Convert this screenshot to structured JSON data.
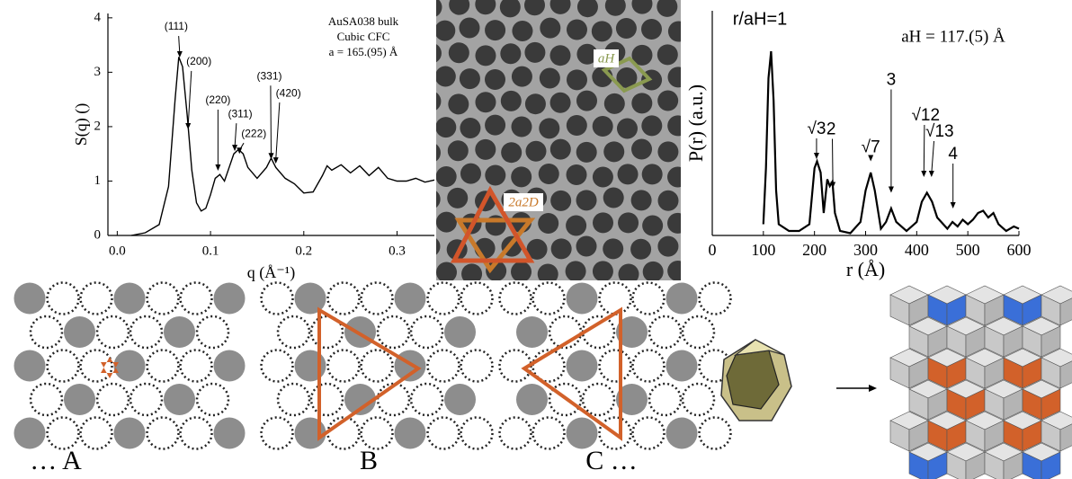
{
  "chart_data": [
    {
      "type": "line",
      "xlabel": "q (Å⁻¹)",
      "ylabel": "S(q) ()",
      "text_box": [
        "AuSA038 bulk",
        "Cubic CFC",
        "a = 165.(95) Å"
      ],
      "x": [
        0.015,
        0.03,
        0.045,
        0.055,
        0.062,
        0.066,
        0.07,
        0.075,
        0.08,
        0.085,
        0.09,
        0.095,
        0.1,
        0.105,
        0.11,
        0.115,
        0.12,
        0.125,
        0.13,
        0.135,
        0.14,
        0.15,
        0.16,
        0.165,
        0.17,
        0.18,
        0.19,
        0.2,
        0.21,
        0.22,
        0.225,
        0.23,
        0.24,
        0.25,
        0.26,
        0.27,
        0.28,
        0.29,
        0.3,
        0.31,
        0.32,
        0.33,
        0.34
      ],
      "values": [
        0,
        0.05,
        0.2,
        0.9,
        2.5,
        3.28,
        3.1,
        2.2,
        1.2,
        0.6,
        0.45,
        0.5,
        0.75,
        1.05,
        1.12,
        1.0,
        1.25,
        1.5,
        1.58,
        1.5,
        1.25,
        1.05,
        1.25,
        1.42,
        1.25,
        1.05,
        0.95,
        0.78,
        0.8,
        1.1,
        1.28,
        1.2,
        1.3,
        1.15,
        1.28,
        1.1,
        1.25,
        1.05,
        1.0,
        1.0,
        1.05,
        0.98,
        1.02
      ],
      "color": "#000000",
      "xlim": [
        -0.01,
        0.34
      ],
      "ylim": [
        0,
        4.08
      ],
      "xticks": [
        {
          "value": 0,
          "label": "0.0"
        },
        0.1,
        0.2,
        0.3
      ],
      "yticks": [
        0,
        1,
        2,
        3,
        4
      ],
      "annotations": [
        {
          "text": "(111)",
          "x": 0.067,
          "y": 3.27
        },
        {
          "text": "(200)",
          "x": 0.076,
          "y": 1.95
        },
        {
          "text": "(220)",
          "x": 0.108,
          "y": 1.19
        },
        {
          "text": "(311)",
          "x": 0.126,
          "y": 1.55
        },
        {
          "text": "(222)",
          "x": 0.131,
          "y": 1.5
        },
        {
          "text": "(331)",
          "x": 0.165,
          "y": 1.4
        },
        {
          "text": "(420)",
          "x": 0.17,
          "y": 1.32
        }
      ]
    },
    {
      "type": "line",
      "xlabel": "r  (Å)",
      "ylabel": "P(r)  (a.u.)",
      "text_box": [
        "aH = 117.(5) Å"
      ],
      "peak_label": "r/aH=1",
      "x": [
        100,
        105,
        110,
        115,
        120,
        125,
        130,
        150,
        170,
        190,
        200,
        205,
        212,
        218,
        225,
        230,
        235,
        240,
        250,
        270,
        290,
        300,
        310,
        318,
        330,
        340,
        350,
        360,
        380,
        400,
        410,
        420,
        430,
        440,
        460,
        470,
        480,
        490,
        500,
        510,
        520,
        530,
        540,
        550,
        560,
        575,
        590,
        600
      ],
      "values": [
        0.05,
        0.3,
        0.7,
        0.82,
        0.6,
        0.2,
        0.05,
        0.02,
        0.02,
        0.05,
        0.3,
        0.33,
        0.28,
        0.1,
        0.25,
        0.22,
        0.24,
        0.1,
        0.02,
        0.01,
        0.06,
        0.2,
        0.28,
        0.2,
        0.03,
        0.06,
        0.12,
        0.06,
        0.02,
        0.06,
        0.15,
        0.19,
        0.15,
        0.08,
        0.03,
        0.06,
        0.04,
        0.07,
        0.05,
        0.07,
        0.1,
        0.11,
        0.08,
        0.1,
        0.05,
        0.02,
        0.04,
        0.03
      ],
      "color": "#000000",
      "xlim": [
        0,
        600
      ],
      "ylim": [
        0,
        1
      ],
      "xticks": [
        0,
        100,
        200,
        300,
        400,
        500,
        600
      ],
      "annotations": [
        {
          "text": "√3",
          "x": 204,
          "y": 0.34
        },
        {
          "text": "2",
          "x": 236,
          "y": 0.21
        },
        {
          "text": "√7",
          "x": 310,
          "y": 0.33
        },
        {
          "text": "3",
          "x": 350,
          "y": 0.19
        },
        {
          "text": "√12",
          "x": 414,
          "y": 0.26
        },
        {
          "text": "√13",
          "x": 429,
          "y": 0.26
        },
        {
          "text": "4",
          "x": 471,
          "y": 0.12
        }
      ]
    }
  ],
  "tem_labels": [
    "aH",
    "2a2D"
  ],
  "stacking_labels": [
    "… A",
    "B",
    "C …"
  ]
}
